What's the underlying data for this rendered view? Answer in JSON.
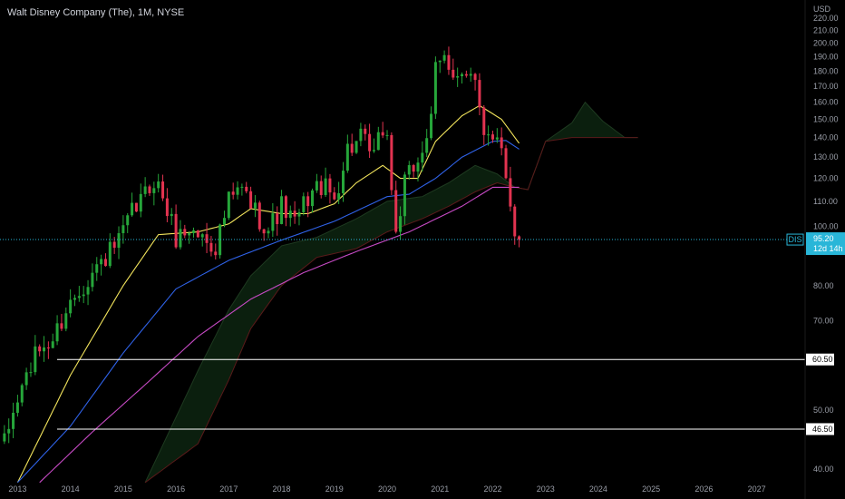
{
  "header": {
    "title": "Walt Disney Company (The), 1M, NYSE"
  },
  "colors": {
    "background": "#000000",
    "up_candle": "#26a63a",
    "down_candle": "#e23350",
    "ma_fast": "#f2e45c",
    "ma_mid": "#2f62e8",
    "ma_slow": "#c64ac4",
    "cloud_fill": "#0d2410",
    "cloud_line": "#1e3a20",
    "cloud_bear_line": "#5a1a1a",
    "last_price_tag": "#29b6d8",
    "support_line": "#ffffff",
    "axis_text": "#9a9ea8"
  },
  "chart_data": {
    "type": "candlestick",
    "symbol": "DIS",
    "currency_label": "USD",
    "y_scale": "log",
    "ylim": [
      38.5,
      226
    ],
    "xlim": [
      "2012-09",
      "2027-12"
    ],
    "x_tick_labels": [
      "2013",
      "2014",
      "2015",
      "2016",
      "2017",
      "2018",
      "2019",
      "2020",
      "2021",
      "2022",
      "2023",
      "2024",
      "2025",
      "2026",
      "2027"
    ],
    "y_tick_labels": [
      "220.00",
      "210.00",
      "200.00",
      "190.00",
      "180.00",
      "170.00",
      "160.00",
      "150.00",
      "140.00",
      "130.00",
      "120.00",
      "110.00",
      "100.00",
      "80.00",
      "70.00",
      "50.00",
      "40.00"
    ],
    "anchors": [
      [
        "2012-10",
        44.0
      ],
      [
        "2013-01",
        52.0
      ],
      [
        "2013-03",
        57.0
      ],
      [
        "2013-06",
        63.0
      ],
      [
        "2013-09",
        65.0
      ],
      [
        "2013-12",
        73.0
      ],
      [
        "2014-03",
        79.0
      ],
      [
        "2014-06",
        84.0
      ],
      [
        "2014-09",
        89.0
      ],
      [
        "2014-12",
        94.0
      ],
      [
        "2015-03",
        105.0
      ],
      [
        "2015-06",
        113.0
      ],
      [
        "2015-08",
        120.0
      ],
      [
        "2015-10",
        112.0
      ],
      [
        "2016-01",
        96.0
      ],
      [
        "2016-04",
        99.0
      ],
      [
        "2016-07",
        96.0
      ],
      [
        "2016-10",
        93.0
      ],
      [
        "2017-01",
        110.0
      ],
      [
        "2017-04",
        115.0
      ],
      [
        "2017-07",
        106.0
      ],
      [
        "2017-10",
        99.0
      ],
      [
        "2018-01",
        108.0
      ],
      [
        "2018-04",
        101.0
      ],
      [
        "2018-07",
        112.0
      ],
      [
        "2018-10",
        117.0
      ],
      [
        "2019-01",
        111.0
      ],
      [
        "2019-04",
        134.0
      ],
      [
        "2019-07",
        139.0
      ],
      [
        "2019-10",
        130.0
      ],
      [
        "2019-12",
        145.0
      ],
      [
        "2020-01",
        140.0
      ],
      [
        "2020-03",
        97.0
      ],
      [
        "2020-05",
        117.0
      ],
      [
        "2020-08",
        129.0
      ],
      [
        "2020-11",
        148.0
      ],
      [
        "2020-12",
        180.0
      ],
      [
        "2021-02",
        189.0
      ],
      [
        "2021-03",
        185.0
      ],
      [
        "2021-06",
        176.0
      ],
      [
        "2021-09",
        170.0
      ],
      [
        "2021-11",
        145.0
      ],
      [
        "2022-01",
        143.0
      ],
      [
        "2022-03",
        137.0
      ],
      [
        "2022-05",
        111.0
      ],
      [
        "2022-06",
        95.0
      ],
      [
        "2022-07",
        95.2
      ]
    ],
    "current_price": {
      "symbol_tag": "DIS",
      "price_label": "95.20",
      "time_to_close": "12d 14h",
      "value": 95.2
    },
    "horizontal_levels": [
      {
        "value": 60.5,
        "label": "60.50"
      },
      {
        "value": 46.5,
        "label": "46.50"
      }
    ],
    "ma_fast": [
      [
        "2013-01",
        38.0
      ],
      [
        "2014-01",
        57.0
      ],
      [
        "2015-01",
        80.0
      ],
      [
        "2015-09",
        97.0
      ],
      [
        "2016-06",
        98.0
      ],
      [
        "2017-01",
        101.0
      ],
      [
        "2017-06",
        107.0
      ],
      [
        "2018-01",
        105.0
      ],
      [
        "2018-07",
        105.0
      ],
      [
        "2019-01",
        109.0
      ],
      [
        "2019-06",
        118.0
      ],
      [
        "2019-12",
        126.0
      ],
      [
        "2020-04",
        120.0
      ],
      [
        "2020-08",
        120.0
      ],
      [
        "2020-12",
        138.0
      ],
      [
        "2021-06",
        152.0
      ],
      [
        "2021-10",
        158.0
      ],
      [
        "2022-03",
        150.0
      ],
      [
        "2022-07",
        137.0
      ]
    ],
    "ma_mid": [
      [
        "2013-01",
        38.0
      ],
      [
        "2014-01",
        47.0
      ],
      [
        "2015-01",
        62.0
      ],
      [
        "2016-01",
        79.0
      ],
      [
        "2017-01",
        88.0
      ],
      [
        "2018-01",
        95.0
      ],
      [
        "2019-01",
        102.0
      ],
      [
        "2020-01",
        112.0
      ],
      [
        "2020-06",
        113.0
      ],
      [
        "2020-12",
        120.0
      ],
      [
        "2021-06",
        130.0
      ],
      [
        "2022-01",
        138.0
      ],
      [
        "2022-04",
        138.5
      ],
      [
        "2022-07",
        134.0
      ]
    ],
    "ma_slow": [
      [
        "2013-06",
        38.0
      ],
      [
        "2014-06",
        46.0
      ],
      [
        "2015-06",
        55.0
      ],
      [
        "2016-06",
        66.0
      ],
      [
        "2017-06",
        76.0
      ],
      [
        "2018-06",
        84.0
      ],
      [
        "2019-06",
        91.0
      ],
      [
        "2020-06",
        98.0
      ],
      [
        "2021-06",
        108.0
      ],
      [
        "2022-01",
        116.0
      ],
      [
        "2022-07",
        116.0
      ]
    ],
    "cloud_a": [
      [
        "2015-06",
        38.0
      ],
      [
        "2016-06",
        58.0
      ],
      [
        "2017-01",
        73.0
      ],
      [
        "2017-06",
        83.0
      ],
      [
        "2018-01",
        93.0
      ],
      [
        "2018-09",
        96.0
      ],
      [
        "2019-06",
        103.0
      ],
      [
        "2020-01",
        110.0
      ],
      [
        "2020-09",
        112.0
      ],
      [
        "2021-03",
        118.0
      ],
      [
        "2021-09",
        126.0
      ],
      [
        "2022-02",
        122.0
      ],
      [
        "2022-06",
        116.0
      ],
      [
        "2022-09",
        115.0
      ],
      [
        "2023-01",
        138.0
      ],
      [
        "2023-07",
        148.0
      ],
      [
        "2023-10",
        160.0
      ],
      [
        "2024-02",
        149.0
      ],
      [
        "2024-07",
        140.0
      ],
      [
        "2024-10",
        140.0
      ]
    ],
    "cloud_b": [
      [
        "2015-06",
        38.0
      ],
      [
        "2016-06",
        44.0
      ],
      [
        "2017-01",
        56.0
      ],
      [
        "2017-06",
        68.0
      ],
      [
        "2018-01",
        80.0
      ],
      [
        "2018-09",
        89.0
      ],
      [
        "2019-06",
        92.0
      ],
      [
        "2020-01",
        98.0
      ],
      [
        "2020-09",
        103.0
      ],
      [
        "2021-03",
        108.0
      ],
      [
        "2021-09",
        114.0
      ],
      [
        "2022-02",
        118.0
      ],
      [
        "2022-06",
        116.0
      ],
      [
        "2022-09",
        115.0
      ],
      [
        "2023-01",
        138.0
      ],
      [
        "2023-07",
        140.0
      ],
      [
        "2023-10",
        140.0
      ],
      [
        "2024-02",
        140.0
      ],
      [
        "2024-07",
        140.0
      ],
      [
        "2024-10",
        140.0
      ]
    ]
  }
}
